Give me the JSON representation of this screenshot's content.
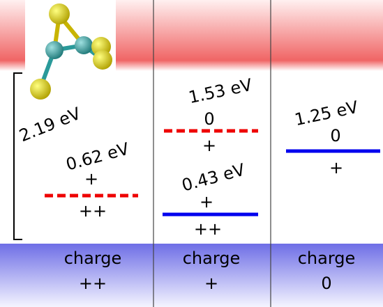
{
  "columns": [
    {
      "gap": "2.19 eV",
      "levels": [
        {
          "energy": "0.62 eV",
          "upper": "+",
          "lower": "++"
        }
      ],
      "charge_label": "charge",
      "charge": "++"
    },
    {
      "levels": [
        {
          "energy": "1.53 eV",
          "upper": "0",
          "lower": "+"
        },
        {
          "energy": "0.43 eV",
          "upper": "+",
          "lower": "++"
        }
      ],
      "charge_label": "charge",
      "charge": "+"
    },
    {
      "levels": [
        {
          "energy": "1.25 eV",
          "upper": "0",
          "lower": "+"
        }
      ],
      "charge_label": "charge",
      "charge": "0"
    }
  ]
}
